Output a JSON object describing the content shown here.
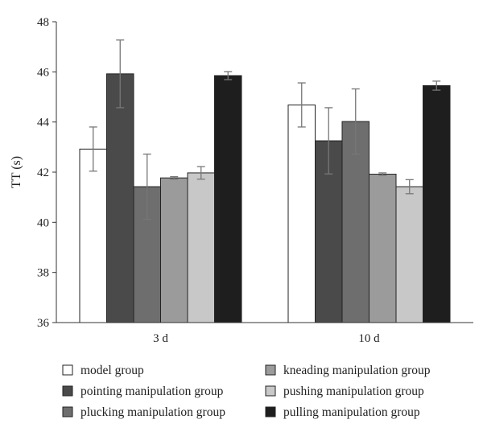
{
  "chart_data": {
    "type": "bar",
    "ylabel": "TT (s)",
    "xlabel": "",
    "ylim": [
      36,
      48
    ],
    "yticks": [
      36,
      38,
      40,
      42,
      44,
      46,
      48
    ],
    "grid": false,
    "legend_position": "bottom",
    "categories": [
      "3 d",
      "10 d"
    ],
    "series": [
      {
        "name": "model group",
        "color": "#ffffff",
        "values": [
          42.92,
          44.68
        ],
        "errors": [
          0.88,
          0.88
        ]
      },
      {
        "name": "pointing manipulation group",
        "color": "#4a4a4a",
        "values": [
          45.92,
          43.25
        ],
        "errors": [
          1.35,
          1.32
        ]
      },
      {
        "name": "plucking manipulation group",
        "color": "#6e6e6e",
        "values": [
          41.42,
          44.02
        ],
        "errors": [
          1.3,
          1.3
        ]
      },
      {
        "name": "kneading manipulation group",
        "color": "#9b9b9b",
        "values": [
          41.77,
          41.92
        ],
        "errors": [
          0.05,
          0.05
        ]
      },
      {
        "name": "pushing manipulation group",
        "color": "#c8c8c8",
        "values": [
          41.97,
          41.42
        ],
        "errors": [
          0.25,
          0.28
        ]
      },
      {
        "name": "pulling manipulation group",
        "color": "#1e1e1e",
        "values": [
          45.85,
          45.45
        ],
        "errors": [
          0.16,
          0.18
        ]
      }
    ]
  }
}
